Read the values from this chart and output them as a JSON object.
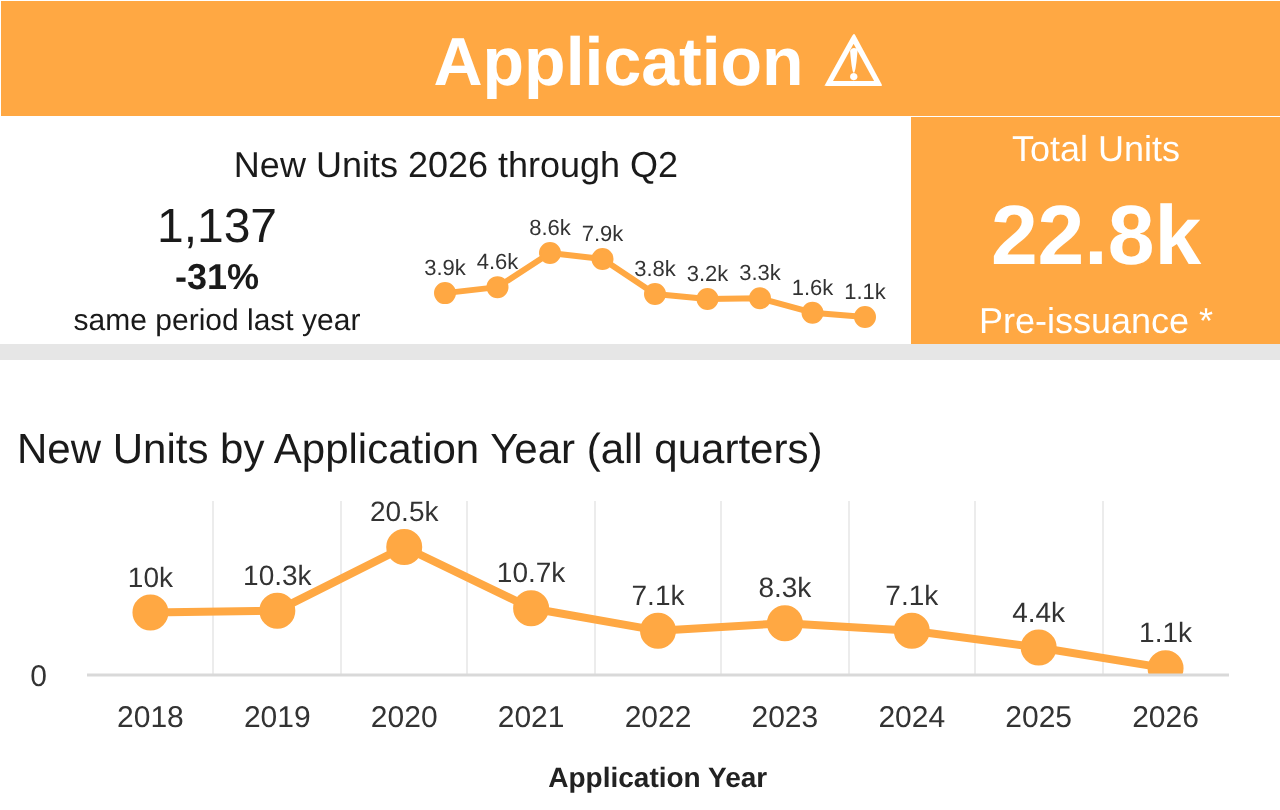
{
  "chart_data": [
    {
      "type": "other",
      "title": "Application ⚠",
      "color": "#ffa843"
    },
    {
      "type": "line",
      "title": "New Units 2026 through Q2",
      "annotations": [
        "1,137",
        "-31%",
        "same period last year"
      ],
      "categories": [
        null,
        null,
        null,
        null,
        null,
        null,
        null,
        null,
        null
      ],
      "values": [
        3900,
        4600,
        8600,
        7900,
        3800,
        3200,
        3300,
        1600,
        1100
      ],
      "value_labels": [
        "3.9k",
        "4.6k",
        "8.6k",
        "7.9k",
        "3.8k",
        "3.2k",
        "3.3k",
        "1.6k",
        "1.1k"
      ],
      "color": "#ffa843",
      "marker": "circle"
    },
    {
      "type": "other",
      "title": "Total Units",
      "annotations": [
        "22.8k",
        "Pre-issuance *"
      ],
      "color": "#ffa843"
    },
    {
      "type": "line",
      "title": "New Units by Application Year (all quarters)",
      "xlabel": "Application Year",
      "annotations": [
        "0"
      ],
      "categories": [
        "2018",
        "2019",
        "2020",
        "2021",
        "2022",
        "2023",
        "2024",
        "2025",
        "2026"
      ],
      "values": [
        10000,
        10300,
        20500,
        10700,
        7100,
        8300,
        7100,
        4400,
        1100
      ],
      "value_labels": [
        "10k",
        "10.3k",
        "20.5k",
        "10.7k",
        "7.1k",
        "8.3k",
        "7.1k",
        "4.4k",
        "1.1k"
      ],
      "grid": "x",
      "marker": "circle",
      "color": "#ffa843"
    }
  ]
}
